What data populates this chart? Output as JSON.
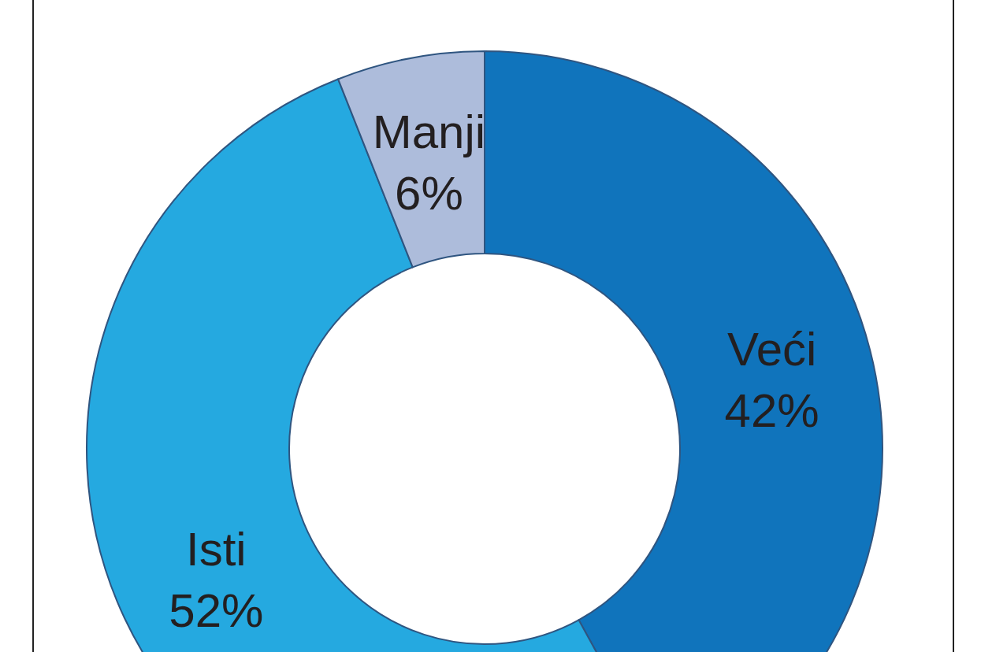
{
  "chart_data": {
    "type": "donut",
    "categories": [
      "Veći",
      "Isti",
      "Manji"
    ],
    "values": [
      42,
      52,
      6
    ],
    "colors": [
      "#1074bc",
      "#25a9e0",
      "#adbcdb"
    ],
    "value_labels": [
      "42%",
      "52%",
      "6%"
    ]
  }
}
